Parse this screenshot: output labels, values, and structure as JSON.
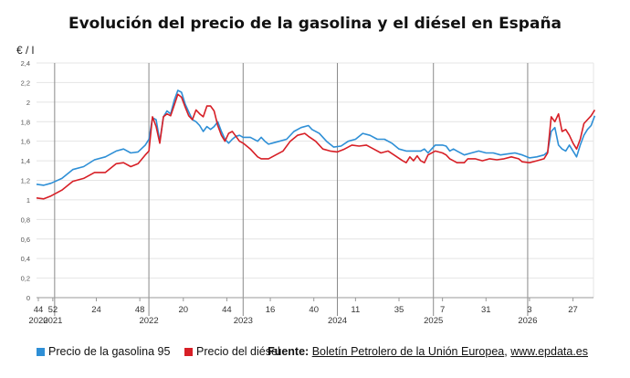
{
  "title": "Evolución del precio de la gasolina y el diésel en España",
  "unit": "€ / l",
  "legend": {
    "gasoline": "Precio de la gasolina 95",
    "diesel": "Precio del diésel"
  },
  "source": {
    "label": "Fuente:",
    "org": "Boletín Petrolero de la Unión Europea",
    "separator": ",",
    "site": "www.epdata.es"
  },
  "colors": {
    "gasoline": "#2e8fd6",
    "diesel": "#d71f26",
    "grid": "#e4e4e4",
    "year_divider": "#8a8a8a"
  },
  "chart_data": {
    "type": "line",
    "title": "Evolución del precio de la gasolina y el diésel en España",
    "ylabel": "€ / l",
    "xlabel": "",
    "ylim": [
      0,
      2.4
    ],
    "yticks": [
      "0",
      "0,2",
      "0,4",
      "0,6",
      "0,8",
      "1",
      "1,2",
      "1,4",
      "1,6",
      "1,8",
      "2",
      "2,2",
      "2,4"
    ],
    "grid": true,
    "legend_position": "bottom",
    "x_unit": "weeks since first observation (week 43 of 2020 = 0)",
    "xlim": [
      0,
      340
    ],
    "xticks": [
      {
        "label": "44",
        "x": 1
      },
      {
        "label": "52",
        "x": 9
      },
      {
        "label": "24",
        "x": 33
      },
      {
        "label": "48",
        "x": 57
      },
      {
        "label": "20",
        "x": 81
      },
      {
        "label": "44",
        "x": 105
      },
      {
        "label": "16",
        "x": 129
      },
      {
        "label": "40",
        "x": 153
      },
      {
        "label": "11",
        "x": 176
      },
      {
        "label": "35",
        "x": 200
      },
      {
        "label": "7",
        "x": 224
      },
      {
        "label": "31",
        "x": 248
      },
      {
        "label": "3",
        "x": 272
      },
      {
        "label": "27",
        "x": 296
      }
    ],
    "years": [
      {
        "label": "2020",
        "x": 1
      },
      {
        "label": "2021",
        "x": 9
      },
      {
        "label": "2022",
        "x": 62
      },
      {
        "label": "2023",
        "x": 114
      },
      {
        "label": "2024",
        "x": 166
      },
      {
        "label": "2025",
        "x": 219
      },
      {
        "label": "2026",
        "x": 271
      }
    ],
    "year_dividers": [
      10,
      62,
      114,
      166,
      219,
      271
    ],
    "series": [
      {
        "name": "Precio de la gasolina 95",
        "color": "#2e8fd6",
        "points": [
          [
            0,
            1.16
          ],
          [
            4,
            1.15
          ],
          [
            8,
            1.17
          ],
          [
            14,
            1.22
          ],
          [
            20,
            1.31
          ],
          [
            26,
            1.34
          ],
          [
            32,
            1.41
          ],
          [
            38,
            1.44
          ],
          [
            44,
            1.5
          ],
          [
            48,
            1.52
          ],
          [
            52,
            1.48
          ],
          [
            56,
            1.49
          ],
          [
            60,
            1.56
          ],
          [
            62,
            1.62
          ],
          [
            64,
            1.84
          ],
          [
            66,
            1.82
          ],
          [
            68,
            1.6
          ],
          [
            70,
            1.85
          ],
          [
            72,
            1.91
          ],
          [
            74,
            1.88
          ],
          [
            76,
            2.02
          ],
          [
            78,
            2.12
          ],
          [
            80,
            2.1
          ],
          [
            82,
            1.98
          ],
          [
            84,
            1.9
          ],
          [
            86,
            1.82
          ],
          [
            88,
            1.8
          ],
          [
            90,
            1.76
          ],
          [
            92,
            1.7
          ],
          [
            94,
            1.75
          ],
          [
            96,
            1.72
          ],
          [
            98,
            1.75
          ],
          [
            100,
            1.8
          ],
          [
            102,
            1.7
          ],
          [
            104,
            1.62
          ],
          [
            106,
            1.58
          ],
          [
            108,
            1.62
          ],
          [
            110,
            1.65
          ],
          [
            112,
            1.66
          ],
          [
            114,
            1.64
          ],
          [
            118,
            1.64
          ],
          [
            122,
            1.6
          ],
          [
            124,
            1.64
          ],
          [
            126,
            1.6
          ],
          [
            128,
            1.57
          ],
          [
            130,
            1.58
          ],
          [
            134,
            1.6
          ],
          [
            138,
            1.62
          ],
          [
            142,
            1.7
          ],
          [
            146,
            1.74
          ],
          [
            150,
            1.76
          ],
          [
            152,
            1.72
          ],
          [
            156,
            1.68
          ],
          [
            160,
            1.6
          ],
          [
            164,
            1.54
          ],
          [
            168,
            1.55
          ],
          [
            172,
            1.6
          ],
          [
            176,
            1.62
          ],
          [
            180,
            1.68
          ],
          [
            184,
            1.66
          ],
          [
            188,
            1.62
          ],
          [
            192,
            1.62
          ],
          [
            196,
            1.58
          ],
          [
            200,
            1.52
          ],
          [
            204,
            1.5
          ],
          [
            208,
            1.5
          ],
          [
            212,
            1.5
          ],
          [
            214,
            1.52
          ],
          [
            216,
            1.48
          ],
          [
            218,
            1.52
          ],
          [
            220,
            1.56
          ],
          [
            224,
            1.56
          ],
          [
            226,
            1.55
          ],
          [
            228,
            1.5
          ],
          [
            230,
            1.52
          ],
          [
            232,
            1.5
          ],
          [
            236,
            1.46
          ],
          [
            240,
            1.48
          ],
          [
            244,
            1.5
          ],
          [
            248,
            1.48
          ],
          [
            252,
            1.48
          ],
          [
            256,
            1.46
          ],
          [
            260,
            1.47
          ],
          [
            264,
            1.48
          ],
          [
            268,
            1.46
          ],
          [
            272,
            1.43
          ],
          [
            276,
            1.44
          ],
          [
            280,
            1.46
          ],
          [
            282,
            1.49
          ],
          [
            284,
            1.7
          ],
          [
            286,
            1.74
          ],
          [
            288,
            1.56
          ],
          [
            290,
            1.52
          ],
          [
            292,
            1.5
          ],
          [
            294,
            1.56
          ],
          [
            296,
            1.5
          ],
          [
            298,
            1.44
          ],
          [
            300,
            1.56
          ],
          [
            302,
            1.66
          ],
          [
            304,
            1.72
          ],
          [
            306,
            1.76
          ],
          [
            308,
            1.86
          ]
        ]
      },
      {
        "name": "Precio del diésel",
        "color": "#d71f26",
        "points": [
          [
            0,
            1.02
          ],
          [
            4,
            1.01
          ],
          [
            8,
            1.04
          ],
          [
            14,
            1.1
          ],
          [
            20,
            1.19
          ],
          [
            26,
            1.22
          ],
          [
            32,
            1.28
          ],
          [
            38,
            1.28
          ],
          [
            44,
            1.37
          ],
          [
            48,
            1.38
          ],
          [
            52,
            1.34
          ],
          [
            56,
            1.37
          ],
          [
            60,
            1.46
          ],
          [
            62,
            1.5
          ],
          [
            64,
            1.85
          ],
          [
            66,
            1.75
          ],
          [
            68,
            1.58
          ],
          [
            70,
            1.85
          ],
          [
            72,
            1.88
          ],
          [
            74,
            1.86
          ],
          [
            76,
            1.97
          ],
          [
            78,
            2.08
          ],
          [
            80,
            2.05
          ],
          [
            82,
            1.95
          ],
          [
            84,
            1.86
          ],
          [
            86,
            1.82
          ],
          [
            88,
            1.92
          ],
          [
            90,
            1.88
          ],
          [
            92,
            1.85
          ],
          [
            94,
            1.96
          ],
          [
            96,
            1.96
          ],
          [
            98,
            1.91
          ],
          [
            100,
            1.76
          ],
          [
            102,
            1.66
          ],
          [
            104,
            1.6
          ],
          [
            106,
            1.68
          ],
          [
            108,
            1.7
          ],
          [
            110,
            1.65
          ],
          [
            112,
            1.6
          ],
          [
            114,
            1.58
          ],
          [
            118,
            1.52
          ],
          [
            122,
            1.44
          ],
          [
            124,
            1.42
          ],
          [
            128,
            1.42
          ],
          [
            132,
            1.46
          ],
          [
            136,
            1.5
          ],
          [
            140,
            1.6
          ],
          [
            144,
            1.66
          ],
          [
            148,
            1.68
          ],
          [
            150,
            1.65
          ],
          [
            154,
            1.6
          ],
          [
            158,
            1.52
          ],
          [
            162,
            1.5
          ],
          [
            166,
            1.49
          ],
          [
            170,
            1.52
          ],
          [
            174,
            1.56
          ],
          [
            178,
            1.55
          ],
          [
            182,
            1.56
          ],
          [
            186,
            1.52
          ],
          [
            190,
            1.48
          ],
          [
            194,
            1.5
          ],
          [
            198,
            1.45
          ],
          [
            202,
            1.4
          ],
          [
            204,
            1.38
          ],
          [
            206,
            1.44
          ],
          [
            208,
            1.4
          ],
          [
            210,
            1.45
          ],
          [
            212,
            1.4
          ],
          [
            214,
            1.38
          ],
          [
            216,
            1.46
          ],
          [
            220,
            1.5
          ],
          [
            224,
            1.48
          ],
          [
            226,
            1.46
          ],
          [
            228,
            1.42
          ],
          [
            230,
            1.4
          ],
          [
            232,
            1.38
          ],
          [
            236,
            1.38
          ],
          [
            238,
            1.42
          ],
          [
            242,
            1.42
          ],
          [
            246,
            1.4
          ],
          [
            250,
            1.42
          ],
          [
            254,
            1.41
          ],
          [
            258,
            1.42
          ],
          [
            262,
            1.44
          ],
          [
            266,
            1.42
          ],
          [
            268,
            1.39
          ],
          [
            272,
            1.38
          ],
          [
            276,
            1.4
          ],
          [
            280,
            1.42
          ],
          [
            282,
            1.48
          ],
          [
            284,
            1.85
          ],
          [
            286,
            1.8
          ],
          [
            288,
            1.88
          ],
          [
            290,
            1.7
          ],
          [
            292,
            1.72
          ],
          [
            294,
            1.66
          ],
          [
            296,
            1.58
          ],
          [
            298,
            1.52
          ],
          [
            300,
            1.62
          ],
          [
            302,
            1.78
          ],
          [
            304,
            1.82
          ],
          [
            306,
            1.86
          ],
          [
            308,
            1.92
          ]
        ]
      }
    ]
  }
}
